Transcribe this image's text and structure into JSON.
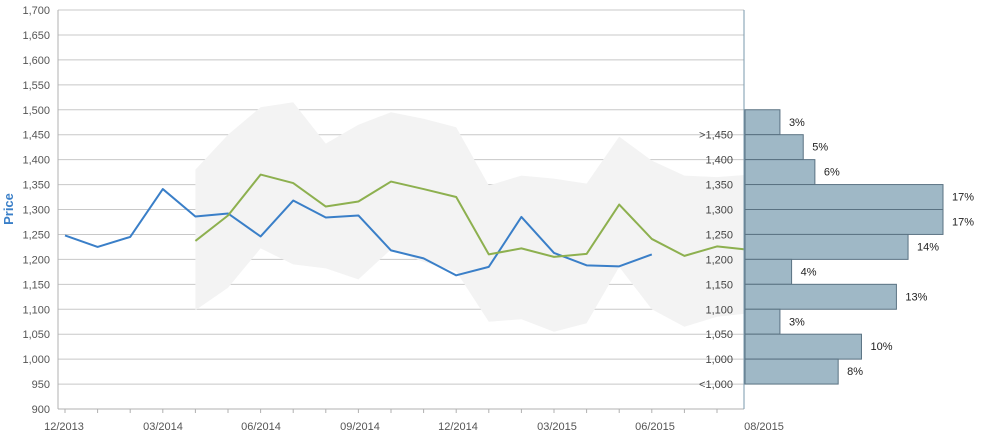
{
  "chart_data": {
    "type": "line",
    "ylabel": "Price",
    "ylim": [
      900,
      1700
    ],
    "yticks": [
      "900",
      "950",
      "1,000",
      "1,050",
      "1,100",
      "1,150",
      "1,200",
      "1,250",
      "1,300",
      "1,350",
      "1,400",
      "1,450",
      "1,500",
      "1,550",
      "1,600",
      "1,650",
      "1,700"
    ],
    "xlabels": [
      "12/2013",
      "03/2014",
      "06/2014",
      "09/2014",
      "12/2014",
      "03/2015",
      "06/2015",
      "08/2015"
    ],
    "colors": {
      "actual": "#3a7fc8",
      "forecast": "#8db04f",
      "band": "#f3f3f3",
      "histogram": "#9fb8c6",
      "histogram_border": "#5a7282",
      "ylabel": "#3a7fc8"
    },
    "series": [
      {
        "key": "actual",
        "values": [
          1248,
          1225,
          1245,
          1341,
          1286,
          1292,
          1246,
          1318,
          1284,
          1288,
          1218,
          1202,
          1168,
          1185,
          1285,
          1213,
          1188,
          1186,
          1210
        ]
      },
      {
        "key": "forecast",
        "values": [
          null,
          null,
          null,
          null,
          1237,
          1288,
          1370,
          1353,
          1306,
          1316,
          1356,
          1341,
          1325,
          1210,
          1222,
          1205,
          1211,
          1310,
          1241,
          1207,
          1226,
          1219
        ]
      }
    ],
    "band": {
      "upper": [
        null,
        null,
        null,
        null,
        1380,
        1450,
        1505,
        1515,
        1432,
        1470,
        1495,
        1482,
        1465,
        1348,
        1368,
        1362,
        1352,
        1446,
        1398,
        1368,
        1365,
        1370
      ],
      "lower": [
        null,
        null,
        null,
        null,
        1098,
        1143,
        1222,
        1190,
        1182,
        1160,
        1220,
        1195,
        1176,
        1075,
        1080,
        1055,
        1072,
        1185,
        1100,
        1065,
        1085,
        1092
      ]
    },
    "histogram": {
      "buckets": [
        ">1,450",
        "1,400",
        "1,350",
        "1,300",
        "1,250",
        "1,200",
        "1,150",
        "1,100",
        "1,050",
        "1,000",
        "<1,000"
      ],
      "percent_labels": [
        "3%",
        "5%",
        "6%",
        "17%",
        "17%",
        "14%",
        "4%",
        "13%",
        "3%",
        "10%",
        "8%"
      ],
      "percents": [
        3,
        5,
        6,
        17,
        17,
        14,
        4,
        13,
        3,
        10,
        8
      ]
    }
  }
}
